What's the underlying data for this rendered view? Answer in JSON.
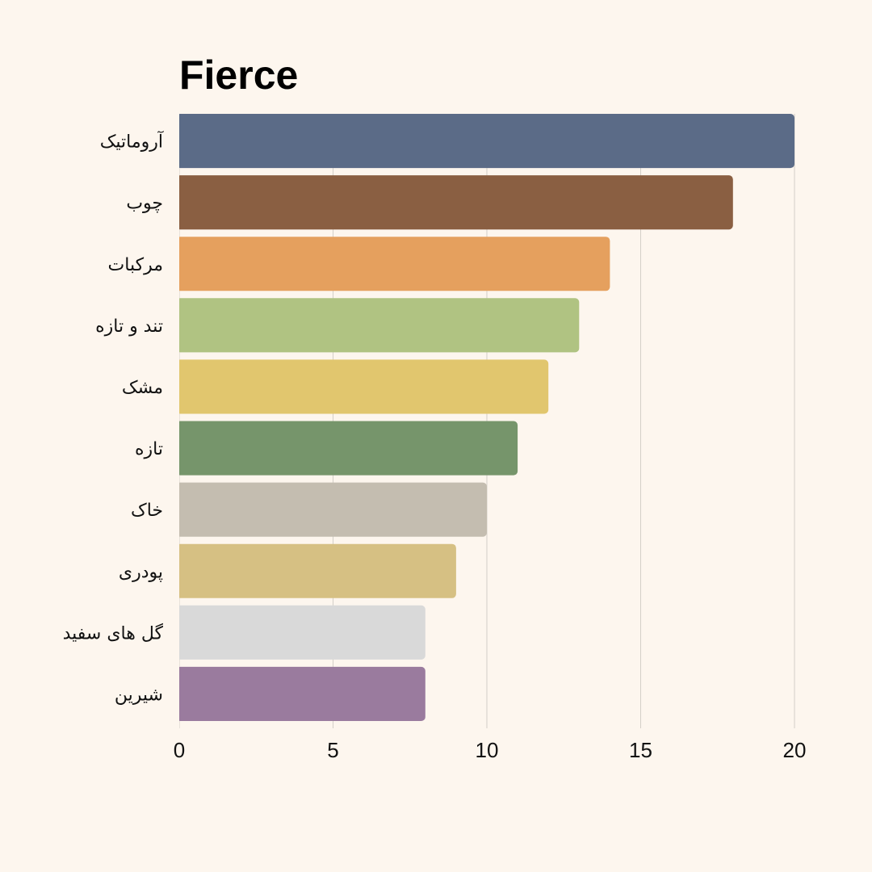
{
  "chart_data": {
    "type": "bar",
    "orientation": "horizontal",
    "title": "Fierce",
    "xlabel": "",
    "ylabel": "",
    "categories": [
      "آروماتیک",
      "چوب",
      "مرکبات",
      "تند و تازه",
      "مشک",
      "تازه",
      "خاک",
      "پودری",
      "گل های سفید",
      "شیرین"
    ],
    "values": [
      20,
      18,
      14,
      13,
      12,
      11,
      10,
      9,
      8,
      8
    ],
    "colors": [
      "#5b6b87",
      "#8a5f42",
      "#e5a05e",
      "#b0c382",
      "#e1c66e",
      "#76956b",
      "#c4bdb0",
      "#d6c083",
      "#d9d9d9",
      "#9a7b9e"
    ],
    "xlim": [
      0,
      20
    ],
    "x_ticks": [
      0,
      5,
      10,
      15,
      20
    ],
    "x_tick_labels": [
      "0",
      "5",
      "10",
      "15",
      "20"
    ],
    "grid": true,
    "legend": "none"
  }
}
